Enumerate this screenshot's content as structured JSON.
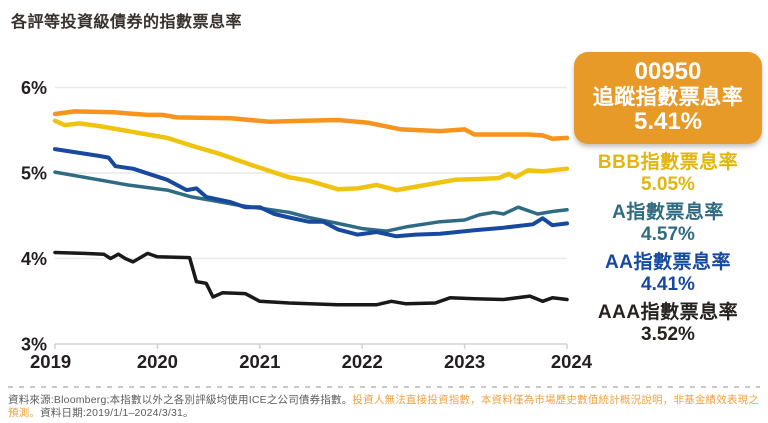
{
  "title": "各評等投資級債券的指數票息率",
  "badge": {
    "code": "00950",
    "label": "追蹤指數票息率",
    "value": "5.41%",
    "bg_color": "#e79a28",
    "text_color": "#ffffff"
  },
  "legend": [
    {
      "rating": "BBB",
      "label": "BBB指數票息率",
      "value": "5.05%",
      "color": "#e3b510"
    },
    {
      "rating": "A",
      "label": "A指數票息率",
      "value": "4.57%",
      "color": "#2f6b82"
    },
    {
      "rating": "AA",
      "label": "AA指數票息率",
      "value": "4.41%",
      "color": "#17499f"
    },
    {
      "rating": "AAA",
      "label": "AAA指數票息率",
      "value": "3.52%",
      "color": "#262220"
    }
  ],
  "footnote": {
    "source": "資料來源:Bloomberg;本指數以外之各別評級均使用ICE之公司債券指數。",
    "disclaimer": "投資人無法直接投資指數，本資料僅為市場歷史數值統計概況說明，非基金績效表現之預測。",
    "date": "資料日期:2019/1/1–2024/3/31。"
  },
  "chart_data": {
    "type": "line",
    "title": "各評等投資級債券的指數票息率",
    "xlabel": "",
    "ylabel": "",
    "x_range": [
      2019.0,
      2024.25
    ],
    "y_range": [
      3,
      6
    ],
    "grid": "horizontal",
    "legend_position": "right",
    "y_ticks": [
      {
        "value": 6,
        "label": "6%"
      },
      {
        "value": 5,
        "label": "5%"
      },
      {
        "value": 4,
        "label": "4%"
      },
      {
        "value": 3,
        "label": "3%"
      }
    ],
    "x_ticks": [
      "2019",
      "2020",
      "2021",
      "2022",
      "2023",
      "2024"
    ],
    "series": [
      {
        "name": "A指數票息率",
        "color": "#2f6b82",
        "stroke_width": 3.5,
        "end_value": 4.57,
        "points": [
          [
            2019.0,
            5.01
          ],
          [
            2019.45,
            4.92
          ],
          [
            2019.75,
            4.86
          ],
          [
            2020.15,
            4.8
          ],
          [
            2020.4,
            4.72
          ],
          [
            2020.65,
            4.67
          ],
          [
            2020.9,
            4.62
          ],
          [
            2021.15,
            4.58
          ],
          [
            2021.4,
            4.54
          ],
          [
            2021.6,
            4.48
          ],
          [
            2021.9,
            4.41
          ],
          [
            2022.15,
            4.35
          ],
          [
            2022.4,
            4.32
          ],
          [
            2022.6,
            4.37
          ],
          [
            2022.95,
            4.43
          ],
          [
            2023.2,
            4.45
          ],
          [
            2023.35,
            4.51
          ],
          [
            2023.5,
            4.54
          ],
          [
            2023.6,
            4.52
          ],
          [
            2023.75,
            4.6
          ],
          [
            2023.95,
            4.52
          ],
          [
            2024.1,
            4.55
          ],
          [
            2024.25,
            4.57
          ]
        ]
      },
      {
        "name": "AA指數票息率",
        "color": "#17499f",
        "stroke_width": 4,
        "end_value": 4.41,
        "points": [
          [
            2019.0,
            5.28
          ],
          [
            2019.45,
            5.2
          ],
          [
            2019.55,
            5.18
          ],
          [
            2019.62,
            5.08
          ],
          [
            2019.8,
            5.05
          ],
          [
            2020.15,
            4.92
          ],
          [
            2020.35,
            4.8
          ],
          [
            2020.45,
            4.82
          ],
          [
            2020.55,
            4.72
          ],
          [
            2020.8,
            4.66
          ],
          [
            2020.95,
            4.6
          ],
          [
            2021.1,
            4.6
          ],
          [
            2021.25,
            4.52
          ],
          [
            2021.4,
            4.48
          ],
          [
            2021.6,
            4.43
          ],
          [
            2021.75,
            4.43
          ],
          [
            2021.9,
            4.34
          ],
          [
            2022.1,
            4.28
          ],
          [
            2022.3,
            4.31
          ],
          [
            2022.5,
            4.26
          ],
          [
            2022.7,
            4.28
          ],
          [
            2022.95,
            4.29
          ],
          [
            2023.3,
            4.33
          ],
          [
            2023.6,
            4.36
          ],
          [
            2023.9,
            4.4
          ],
          [
            2024.0,
            4.47
          ],
          [
            2024.1,
            4.39
          ],
          [
            2024.25,
            4.41
          ]
        ]
      },
      {
        "name": "BBB指數票息率",
        "color": "#efc411",
        "stroke_width": 4.5,
        "end_value": 5.05,
        "points": [
          [
            2019.0,
            5.61
          ],
          [
            2019.1,
            5.56
          ],
          [
            2019.25,
            5.58
          ],
          [
            2019.45,
            5.55
          ],
          [
            2019.65,
            5.51
          ],
          [
            2019.95,
            5.45
          ],
          [
            2020.15,
            5.41
          ],
          [
            2020.4,
            5.32
          ],
          [
            2020.7,
            5.22
          ],
          [
            2021.0,
            5.1
          ],
          [
            2021.4,
            4.95
          ],
          [
            2021.6,
            4.91
          ],
          [
            2021.9,
            4.81
          ],
          [
            2022.1,
            4.82
          ],
          [
            2022.3,
            4.86
          ],
          [
            2022.5,
            4.8
          ],
          [
            2022.8,
            4.86
          ],
          [
            2023.1,
            4.92
          ],
          [
            2023.35,
            4.93
          ],
          [
            2023.55,
            4.94
          ],
          [
            2023.65,
            4.99
          ],
          [
            2023.72,
            4.95
          ],
          [
            2023.85,
            5.03
          ],
          [
            2024.0,
            5.02
          ],
          [
            2024.25,
            5.05
          ]
        ]
      },
      {
        "name": "00950追蹤指數票息率",
        "color": "#f7941e",
        "stroke_width": 4.5,
        "end_value": 5.41,
        "points": [
          [
            2019.0,
            5.69
          ],
          [
            2019.2,
            5.72
          ],
          [
            2019.6,
            5.71
          ],
          [
            2019.95,
            5.68
          ],
          [
            2020.1,
            5.68
          ],
          [
            2020.25,
            5.65
          ],
          [
            2020.8,
            5.64
          ],
          [
            2021.2,
            5.6
          ],
          [
            2021.55,
            5.61
          ],
          [
            2021.9,
            5.62
          ],
          [
            2022.2,
            5.59
          ],
          [
            2022.55,
            5.51
          ],
          [
            2022.95,
            5.49
          ],
          [
            2023.2,
            5.51
          ],
          [
            2023.3,
            5.45
          ],
          [
            2023.85,
            5.45
          ],
          [
            2024.0,
            5.44
          ],
          [
            2024.1,
            5.4
          ],
          [
            2024.25,
            5.41
          ]
        ]
      },
      {
        "name": "AAA指數票息率",
        "color": "#191919",
        "stroke_width": 3.5,
        "end_value": 3.52,
        "points": [
          [
            2019.0,
            4.07
          ],
          [
            2019.3,
            4.06
          ],
          [
            2019.5,
            4.05
          ],
          [
            2019.57,
            4.0
          ],
          [
            2019.65,
            4.05
          ],
          [
            2019.72,
            4.0
          ],
          [
            2019.8,
            3.96
          ],
          [
            2019.95,
            4.06
          ],
          [
            2020.05,
            4.02
          ],
          [
            2020.38,
            4.01
          ],
          [
            2020.45,
            3.73
          ],
          [
            2020.55,
            3.71
          ],
          [
            2020.62,
            3.55
          ],
          [
            2020.72,
            3.6
          ],
          [
            2020.95,
            3.59
          ],
          [
            2021.1,
            3.5
          ],
          [
            2021.4,
            3.48
          ],
          [
            2021.9,
            3.46
          ],
          [
            2022.3,
            3.46
          ],
          [
            2022.45,
            3.5
          ],
          [
            2022.6,
            3.47
          ],
          [
            2022.9,
            3.48
          ],
          [
            2023.05,
            3.54
          ],
          [
            2023.3,
            3.53
          ],
          [
            2023.6,
            3.52
          ],
          [
            2023.87,
            3.56
          ],
          [
            2024.0,
            3.5
          ],
          [
            2024.1,
            3.54
          ],
          [
            2024.25,
            3.52
          ]
        ]
      }
    ]
  }
}
